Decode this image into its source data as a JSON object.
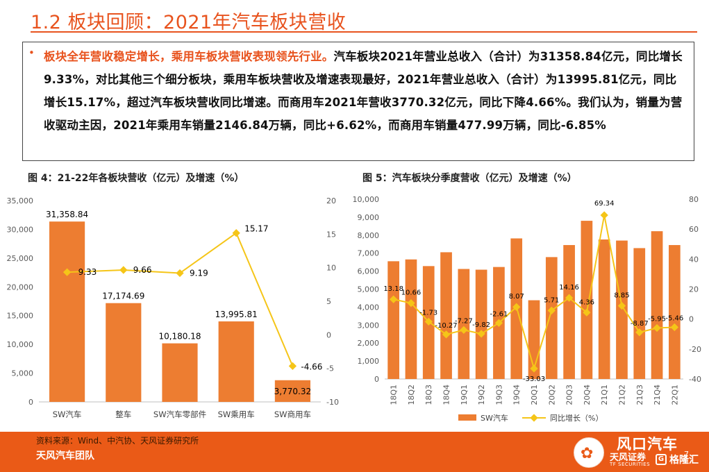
{
  "page_title": "1.2 板块回顾：2021年汽车板块营收",
  "summary": {
    "bullet": "•",
    "highlight": "板块全年营收稳定增长，乘用车板块营收表现领先行业。",
    "body": "汽车板块2021年营业总收入（合计）为31358.84亿元，同比增长9.33%，对比其他三个细分板块，乘用车板块营收及增速表现最好，2021年营业总收入（合计）为13995.81亿元，同比增长15.17%，超过汽车板块营收同比增速。而商用车2021年营收3770.32亿元，同比下降4.66%。我们认为，销量为营收驱动主因，2021年乘用车销量2146.84万辆，同比+6.62%，而商用车销量477.99万辆，同比-6.85%"
  },
  "fig4_title": "图 4：21-22年各板块营收（亿元）及增速（%）",
  "fig5_title": "图 5：汽车板块分季度营收（亿元）及增速（%）",
  "colors": {
    "accent": "#e8531e",
    "bar": "#ed7d31",
    "line": "#f5c518",
    "footer": "#ea5a17"
  },
  "chart_data": [
    {
      "type": "bar",
      "categories": [
        "SW汽车",
        "整车",
        "SW汽车零部件",
        "SW乘用车",
        "SW商用车"
      ],
      "series": [
        {
          "values": [
            31358.84,
            17174.69,
            10180.18,
            13995.81,
            3770.32
          ],
          "labels": [
            "31,358.84",
            "17,174.69",
            "10,180.18",
            "13,995.81",
            "3,770.32"
          ],
          "axis": "left",
          "type": "bar"
        },
        {
          "values": [
            9.33,
            9.66,
            9.19,
            15.17,
            -4.66
          ],
          "labels": [
            "9.33",
            "9.66",
            "9.19",
            "15.17",
            "-4.66"
          ],
          "axis": "right",
          "type": "line"
        }
      ],
      "ylim": [
        0,
        35000
      ],
      "yticks": [
        "0",
        "5,000",
        "10,000",
        "15,000",
        "20,000",
        "25,000",
        "30,000",
        "35,000"
      ],
      "y2lim": [
        -10,
        20
      ],
      "y2ticks": [
        "-10",
        "-5",
        "0",
        "5",
        "10",
        "15",
        "20"
      ],
      "grid": false,
      "legend": "none"
    },
    {
      "type": "bar",
      "categories": [
        "18Q1",
        "18Q2",
        "18Q3",
        "18Q4",
        "19Q1",
        "19Q2",
        "19Q3",
        "19Q4",
        "20Q1",
        "20Q2",
        "20Q3",
        "20Q4",
        "21Q1",
        "21Q2",
        "21Q3",
        "21Q4",
        "22Q1"
      ],
      "series": [
        {
          "name": "SW汽车",
          "values": [
            6550,
            6650,
            6280,
            7050,
            6120,
            6080,
            6230,
            7820,
            4380,
            6780,
            7450,
            8800,
            7760,
            7700,
            7280,
            8220,
            7450
          ],
          "axis": "left",
          "type": "bar"
        },
        {
          "name": "同比增长（%）",
          "values": [
            13.18,
            10.66,
            -1.73,
            -10.27,
            -7.27,
            -9.82,
            -2.61,
            8.07,
            -33.03,
            5.71,
            14.16,
            4.36,
            69.34,
            8.85,
            -8.87,
            -5.95,
            -5.46
          ],
          "labels": [
            "13.18",
            "10.66",
            "-1.73",
            "-10.27",
            "-7.27",
            "-9.82",
            "-2.61",
            "8.07",
            "-33.03",
            "5.71",
            "14.16",
            "4.36",
            "69.34",
            "8.85",
            "-8.87",
            "-5.95",
            "-5.46"
          ],
          "axis": "right",
          "type": "line"
        }
      ],
      "ylim": [
        0,
        10000
      ],
      "yticks": [
        "0",
        "1,000",
        "2,000",
        "3,000",
        "4,000",
        "5,000",
        "6,000",
        "7,000",
        "8,000",
        "9,000",
        "10,000"
      ],
      "y2lim": [
        -40,
        80
      ],
      "y2ticks": [
        "-40",
        "-20",
        "0",
        "20",
        "40",
        "60",
        "80"
      ],
      "grid": false,
      "legend": "bottom"
    }
  ],
  "footer": {
    "source": "资料来源：Wind、中汽协、天风证券研究所",
    "team": "天风汽车团队",
    "page_number": "7"
  },
  "brand": {
    "name": "风口汽车",
    "sub": "天风证券",
    "sub_en": "TF SECURITIES",
    "logo_letter": "G",
    "logo_text": "格隆汇",
    "circle_icon": "wechat-icon"
  }
}
